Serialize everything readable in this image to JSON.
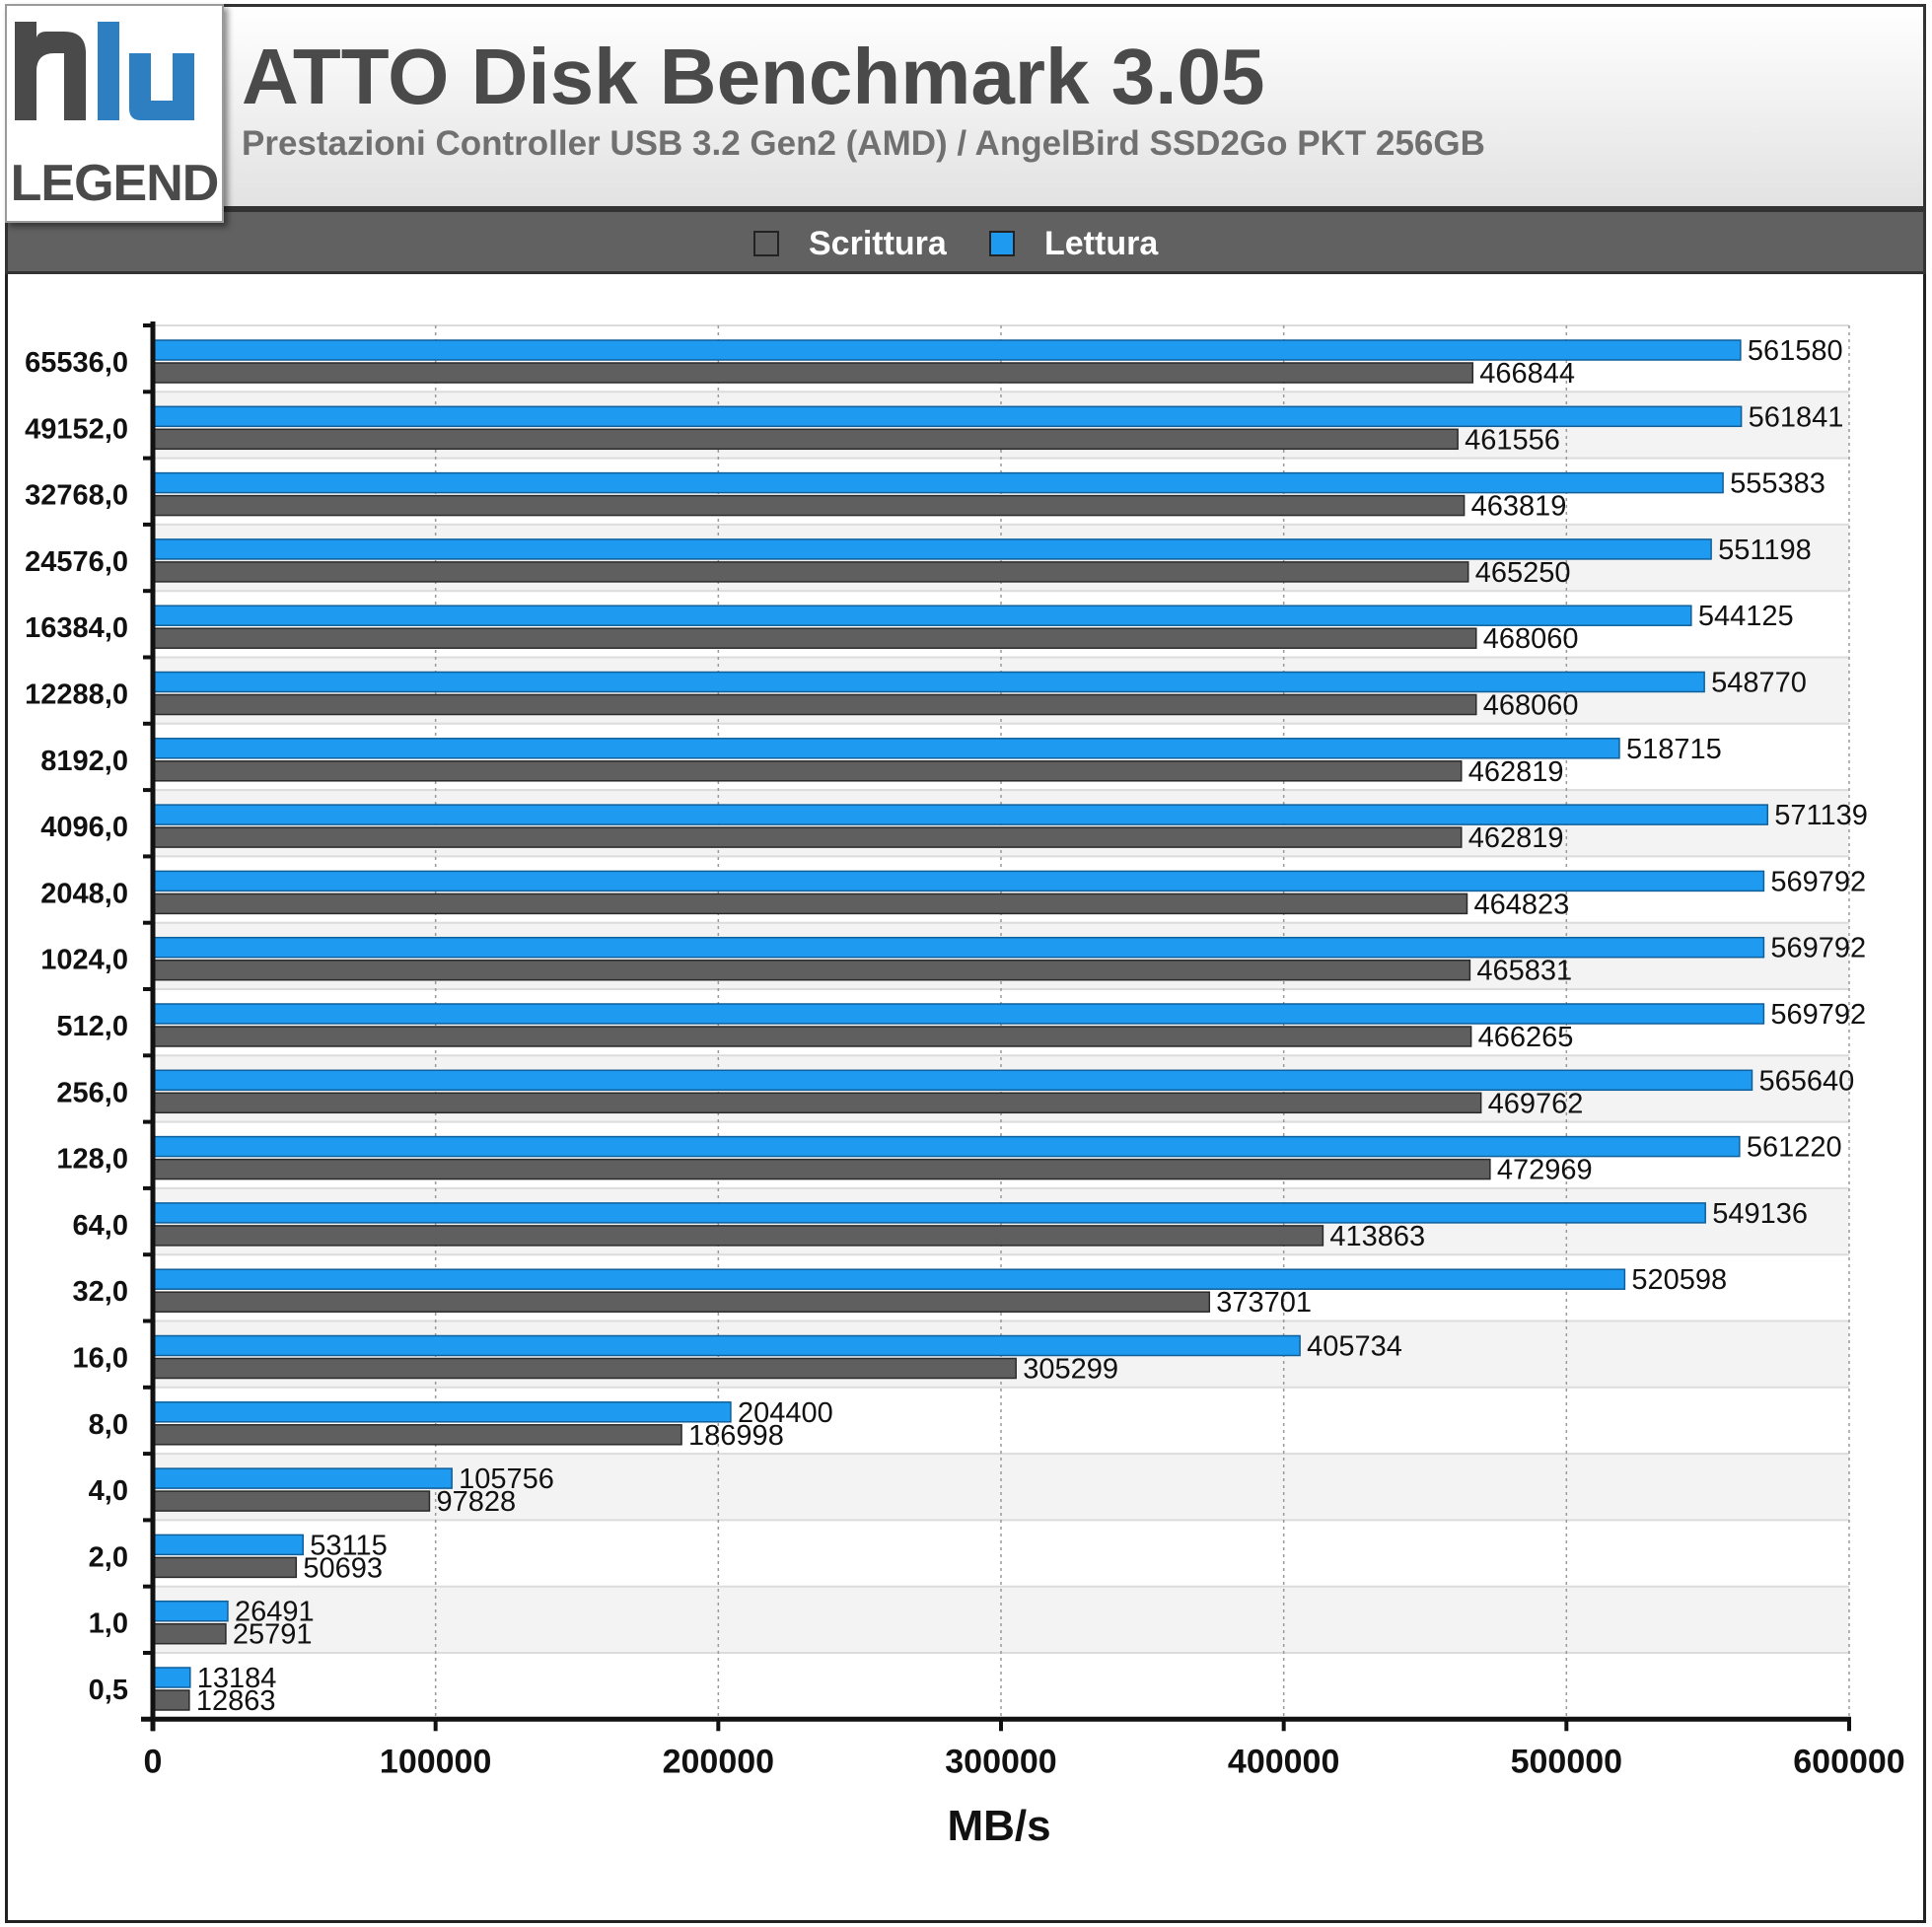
{
  "header": {
    "logo_text": "LEGEND",
    "title": "ATTO Disk Benchmark 3.05",
    "subtitle": "Prestazioni Controller USB 3.2 Gen2 (AMD) / AngelBird SSD2Go PKT 256GB"
  },
  "legend": [
    {
      "name": "Scrittura",
      "color": "#5f5f5f"
    },
    {
      "name": "Lettura",
      "color": "#1e9bf0"
    }
  ],
  "chart_data": {
    "type": "bar",
    "orientation": "horizontal",
    "categories": [
      "65536,0",
      "49152,0",
      "32768,0",
      "24576,0",
      "16384,0",
      "12288,0",
      "8192,0",
      "4096,0",
      "2048,0",
      "1024,0",
      "512,0",
      "256,0",
      "128,0",
      "64,0",
      "32,0",
      "16,0",
      "8,0",
      "4,0",
      "2,0",
      "1,0",
      "0,5"
    ],
    "series": [
      {
        "name": "Lettura",
        "color": "#1e9bf0",
        "values": [
          561580,
          561841,
          555383,
          551198,
          544125,
          548770,
          518715,
          571139,
          569792,
          569792,
          569792,
          565640,
          561220,
          549136,
          520598,
          405734,
          204400,
          105756,
          53115,
          26491,
          13184
        ]
      },
      {
        "name": "Scrittura",
        "color": "#5f5f5f",
        "values": [
          466844,
          461556,
          463819,
          465250,
          468060,
          468060,
          462819,
          462819,
          464823,
          465831,
          466265,
          469762,
          472969,
          413863,
          373701,
          305299,
          186998,
          97828,
          50693,
          25791,
          12863
        ]
      }
    ],
    "xlim": [
      0,
      600000
    ],
    "xticks": [
      "0",
      "100000",
      "200000",
      "300000",
      "400000",
      "500000",
      "600000"
    ],
    "xlabel": "MB/s",
    "ylabel": "",
    "grid": true,
    "legend_position": "top"
  }
}
